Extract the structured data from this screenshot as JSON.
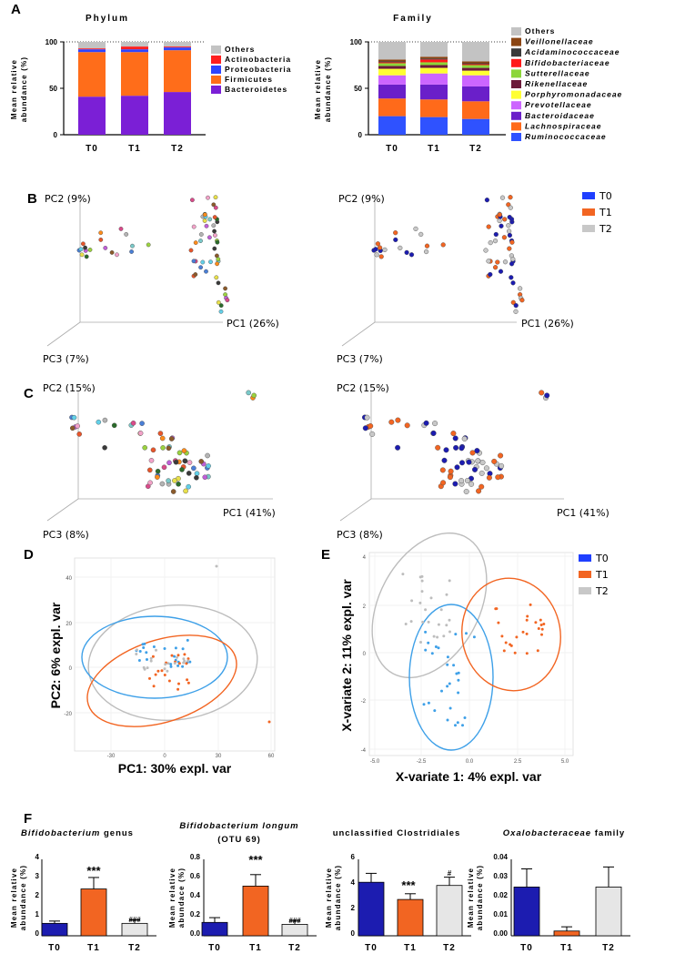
{
  "colors": {
    "others": "#c3c3c3",
    "actinobacteria": "#ff1f1f",
    "proteobacteria": "#2f45ff",
    "firmicutes": "#ff6d1a",
    "bacteroidetes": "#7b1fd6",
    "veillonellaceae": "#8b4513",
    "acidaminococcaceae": "#3a3a3a",
    "bifidobacteriaceae": "#ff1a1a",
    "sutterellaceae": "#8cd63a",
    "rikenellaceae": "#6b1a3a",
    "porphyromonadaceae": "#ffff33",
    "prevotellaceae": "#cc66ff",
    "bacteroidaceae": "#6a1fc9",
    "lachnospiraceae": "#ff6a1a",
    "ruminococcaceae": "#2f52ff",
    "t0": "#1f3fff",
    "t1": "#f26522",
    "t2": "#c8c8c8",
    "t0_dark": "#1c1cb0",
    "plsda_t0": "#3ea0e8",
    "plsda_t2": "#bdbdbd"
  },
  "panel_labels": {
    "a": "A",
    "b": "B",
    "c": "C",
    "d": "D",
    "e": "E",
    "f": "F"
  },
  "panel_a": {
    "phylum": {
      "title": "Phylum",
      "ylabel": "Mean relative abundance (%)",
      "ylabel_lines": [
        "Mean relative",
        "abundance (%)"
      ],
      "yticks": [
        "100",
        "50",
        "0"
      ],
      "categories": [
        "T0",
        "T1",
        "T2"
      ],
      "legend": [
        "Others",
        "Actinobacteria",
        "Proteobacteria",
        "Firmicutes",
        "Bacteroidetes"
      ]
    },
    "family": {
      "title": "Family",
      "ylabel": "Mean relative abundance (%)",
      "ylabel_lines": [
        "Mean relative",
        "abundance (%)"
      ],
      "yticks": [
        "100",
        "50",
        "0"
      ],
      "categories": [
        "T0",
        "T1",
        "T2"
      ],
      "legend": [
        "Others",
        "Veillonellaceae",
        "Acidaminococcaceae",
        "Bifidobacteriaceae",
        "Sutterellaceae",
        "Rikenellaceae",
        "Porphyromonadaceae",
        "Prevotellaceae",
        "Bacteroidaceae",
        "Lachnospiraceae",
        "Ruminococcaceae"
      ]
    }
  },
  "panel_b": {
    "pc1": "PC1 (26%)",
    "pc2": "PC2 (9%)",
    "pc3": "PC3 (7%)"
  },
  "panel_c": {
    "pc1": "PC1 (41%)",
    "pc2": "PC2 (15%)",
    "pc3": "PC3 (8%)"
  },
  "group_legend": [
    "T0",
    "T1",
    "T2"
  ],
  "panel_d": {
    "xlabel": "PC1: 30% expl. var",
    "ylabel": "PC2: 6% expl. var",
    "xticks": [
      "-30",
      "0",
      "30",
      "60"
    ],
    "yticks": [
      "40",
      "20",
      "0",
      "-20"
    ]
  },
  "panel_e": {
    "xlabel": "X-variate 1: 4% expl. var",
    "ylabel": "X-variate 2: 11% expl. var",
    "xticks": [
      "-5.0",
      "-2.5",
      "0.0",
      "2.5",
      "5.0"
    ],
    "yticks": [
      "4",
      "2",
      "0",
      "-2",
      "-4"
    ]
  },
  "panel_f": {
    "bifido_genus": {
      "title_italic": "Bifidobacterium",
      "title_rest": " genus",
      "ylabel_lines": [
        "Mean relative",
        "abundance (%)"
      ],
      "yticks": [
        "4",
        "3",
        "2",
        "1",
        "0"
      ],
      "annot": [
        "***",
        "###"
      ]
    },
    "bifido_longum": {
      "title": "Bifidobacterium longum",
      "subtitle": "(OTU 69)",
      "ylabel_lines": [
        "Mean relative",
        "abundace (%)"
      ],
      "yticks": [
        "0.8",
        "0.6",
        "0.4",
        "0.2",
        "0.0"
      ],
      "annot": [
        "***",
        "###"
      ]
    },
    "clostridiales": {
      "title": "unclassified Clostridiales",
      "ylabel_lines": [
        "Mean relative",
        "abundance (%)"
      ],
      "yticks": [
        "6",
        "4",
        "2",
        "0"
      ],
      "annot": [
        "***",
        "#"
      ]
    },
    "oxalo": {
      "title_italic": "Oxalobacteraceae",
      "title_rest": " family",
      "ylabel_lines": [
        "Mean relative",
        "abundance (%)"
      ],
      "yticks": [
        "0.04",
        "0.03",
        "0.02",
        "0.01",
        "0.00"
      ]
    },
    "categories": [
      "T0",
      "T1",
      "T2"
    ]
  },
  "chart_data": [
    {
      "type": "bar",
      "title": "Phylum",
      "stacked": true,
      "categories": [
        "T0",
        "T1",
        "T2"
      ],
      "ylabel": "Mean relative abundance (%)",
      "ylim": [
        0,
        100
      ],
      "series": [
        {
          "name": "Bacteroidetes",
          "values": [
            41,
            42,
            46
          ]
        },
        {
          "name": "Firmicutes",
          "values": [
            48,
            47,
            45
          ]
        },
        {
          "name": "Proteobacteria",
          "values": [
            3,
            3,
            3
          ]
        },
        {
          "name": "Actinobacteria",
          "values": [
            1,
            3,
            1
          ]
        },
        {
          "name": "Others",
          "values": [
            7,
            5,
            5
          ]
        }
      ]
    },
    {
      "type": "bar",
      "title": "Family",
      "stacked": true,
      "categories": [
        "T0",
        "T1",
        "T2"
      ],
      "ylabel": "Mean relative abundance (%)",
      "ylim": [
        0,
        100
      ],
      "series": [
        {
          "name": "Ruminococcaceae",
          "values": [
            20,
            19,
            17
          ]
        },
        {
          "name": "Lachnospiraceae",
          "values": [
            19,
            19,
            19
          ]
        },
        {
          "name": "Bacteroidaceae",
          "values": [
            15,
            16,
            16
          ]
        },
        {
          "name": "Prevotellaceae",
          "values": [
            10,
            12,
            12
          ]
        },
        {
          "name": "Porphyromonadaceae",
          "values": [
            7,
            6,
            5
          ]
        },
        {
          "name": "Rikenellaceae",
          "values": [
            3,
            3,
            3
          ]
        },
        {
          "name": "Sutterellaceae",
          "values": [
            3,
            3,
            3
          ]
        },
        {
          "name": "Bifidobacteriaceae",
          "values": [
            1,
            3,
            1
          ]
        },
        {
          "name": "Acidaminococcaceae",
          "values": [
            1,
            1,
            1
          ]
        },
        {
          "name": "Veillonellaceae",
          "values": [
            2,
            2,
            2
          ]
        },
        {
          "name": "Others",
          "values": [
            19,
            16,
            21
          ]
        }
      ]
    },
    {
      "type": "bar",
      "title": "Bifidobacterium genus",
      "categories": [
        "T0",
        "T1",
        "T2"
      ],
      "ylabel": "Mean relative abundance (%)",
      "ylim": [
        0,
        4
      ],
      "values": [
        0.65,
        2.45,
        0.65
      ],
      "errors": [
        0.12,
        0.6,
        0.18
      ]
    },
    {
      "type": "bar",
      "title": "Bifidobacterium longum (OTU 69)",
      "categories": [
        "T0",
        "T1",
        "T2"
      ],
      "ylabel": "Mean relative abundace (%)",
      "ylim": [
        0,
        0.8
      ],
      "values": [
        0.14,
        0.52,
        0.12
      ],
      "errors": [
        0.05,
        0.12,
        0.04
      ]
    },
    {
      "type": "bar",
      "title": "unclassified Clostridiales",
      "categories": [
        "T0",
        "T1",
        "T2"
      ],
      "ylabel": "Mean relative abundance (%)",
      "ylim": [
        0,
        6
      ],
      "values": [
        4.2,
        2.85,
        3.95
      ],
      "errors": [
        0.7,
        0.45,
        0.65
      ]
    },
    {
      "type": "bar",
      "title": "Oxalobacteraceae family",
      "categories": [
        "T0",
        "T1",
        "T2"
      ],
      "ylabel": "Mean relative abundance (%)",
      "ylim": [
        0,
        0.04
      ],
      "values": [
        0.0255,
        0.0025,
        0.0255
      ],
      "errors": [
        0.0095,
        0.0022,
        0.0105
      ]
    }
  ]
}
